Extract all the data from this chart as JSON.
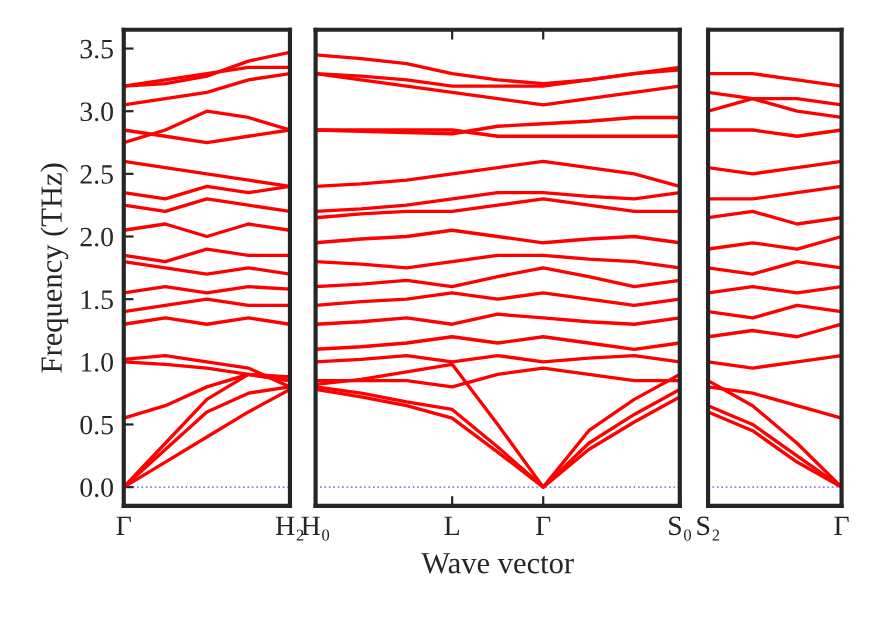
{
  "chart_data": [
    {
      "type": "line",
      "ylabel": "Frequency (THz)",
      "categories": [
        "Γ",
        null,
        null,
        null,
        "H₂"
      ],
      "ylim": [
        -0.15,
        3.65
      ],
      "yticks": [
        {
          "value": 0,
          "label": "0.0"
        },
        {
          "value": 0.5,
          "label": "0.5"
        },
        {
          "value": 1,
          "label": "1.0"
        },
        {
          "value": 1.5,
          "label": "1.5"
        },
        {
          "value": 2,
          "label": "2.0"
        },
        {
          "value": 2.5,
          "label": "2.5"
        },
        {
          "value": 3,
          "label": "3.0"
        },
        {
          "value": 3.5,
          "label": "3.5"
        }
      ],
      "grid": false,
      "line_style": "solid",
      "ref_lines": [
        {
          "axis": "y",
          "value": 0,
          "color": "#8080ff",
          "line_style": "dotted"
        }
      ],
      "series": [
        {
          "color": "#ff0000",
          "values": [
            0,
            0.2,
            0.4,
            0.6,
            0.78
          ]
        },
        {
          "color": "#ff0000",
          "values": [
            0,
            0.3,
            0.6,
            0.75,
            0.8
          ]
        },
        {
          "color": "#ff0000",
          "values": [
            0,
            0.35,
            0.7,
            0.9,
            0.85
          ]
        },
        {
          "color": "#ff0000",
          "values": [
            0.55,
            0.65,
            0.8,
            0.9,
            0.85
          ]
        },
        {
          "color": "#ff0000",
          "values": [
            1.0,
            0.98,
            0.95,
            0.9,
            0.88
          ]
        },
        {
          "color": "#ff0000",
          "values": [
            1.02,
            1.05,
            1.0,
            0.95,
            0.8
          ]
        },
        {
          "color": "#ff0000",
          "values": [
            1.3,
            1.35,
            1.3,
            1.35,
            1.3
          ]
        },
        {
          "color": "#ff0000",
          "values": [
            1.4,
            1.45,
            1.5,
            1.45,
            1.45
          ]
        },
        {
          "color": "#ff0000",
          "values": [
            1.55,
            1.6,
            1.55,
            1.6,
            1.58
          ]
        },
        {
          "color": "#ff0000",
          "values": [
            1.8,
            1.75,
            1.7,
            1.75,
            1.7
          ]
        },
        {
          "color": "#ff0000",
          "values": [
            1.85,
            1.8,
            1.9,
            1.85,
            1.85
          ]
        },
        {
          "color": "#ff0000",
          "values": [
            2.05,
            2.1,
            2.0,
            2.1,
            2.05
          ]
        },
        {
          "color": "#ff0000",
          "values": [
            2.25,
            2.2,
            2.3,
            2.25,
            2.2
          ]
        },
        {
          "color": "#ff0000",
          "values": [
            2.35,
            2.3,
            2.4,
            2.35,
            2.4
          ]
        },
        {
          "color": "#ff0000",
          "values": [
            2.6,
            2.55,
            2.5,
            2.45,
            2.4
          ]
        },
        {
          "color": "#ff0000",
          "values": [
            2.75,
            2.85,
            3.0,
            2.95,
            2.85
          ]
        },
        {
          "color": "#ff0000",
          "values": [
            2.85,
            2.8,
            2.75,
            2.8,
            2.85
          ]
        },
        {
          "color": "#ff0000",
          "values": [
            3.05,
            3.1,
            3.15,
            3.25,
            3.3
          ]
        },
        {
          "color": "#ff0000",
          "values": [
            3.2,
            3.25,
            3.3,
            3.35,
            3.35
          ]
        },
        {
          "color": "#ff0000",
          "values": [
            3.2,
            3.22,
            3.28,
            3.4,
            3.47
          ]
        }
      ]
    },
    {
      "type": "line",
      "xlabel": "Wave vector",
      "categories": [
        "H₀",
        null,
        null,
        "L",
        null,
        "Γ",
        null,
        null,
        "S₀"
      ],
      "ylim": [
        -0.15,
        3.65
      ],
      "tick_labels": "x",
      "grid": false,
      "line_style": "solid",
      "ref_lines": [
        {
          "axis": "y",
          "value": 0,
          "color": "#8080ff",
          "line_style": "dotted"
        }
      ],
      "series": [
        {
          "color": "#ff0000",
          "values": [
            0.78,
            0.72,
            0.65,
            0.55,
            0.28,
            0,
            0.3,
            0.52,
            0.72
          ]
        },
        {
          "color": "#ff0000",
          "values": [
            0.8,
            0.75,
            0.68,
            0.62,
            0.32,
            0,
            0.35,
            0.58,
            0.78
          ]
        },
        {
          "color": "#ff0000",
          "values": [
            0.82,
            0.86,
            0.92,
            0.98,
            0.5,
            0,
            0.45,
            0.7,
            0.9
          ]
        },
        {
          "color": "#ff0000",
          "values": [
            0.85,
            0.85,
            0.85,
            0.8,
            0.9,
            0.95,
            0.9,
            0.85,
            0.85
          ]
        },
        {
          "color": "#ff0000",
          "values": [
            1.0,
            1.02,
            1.05,
            1.0,
            1.05,
            1.0,
            1.03,
            1.05,
            1.0
          ]
        },
        {
          "color": "#ff0000",
          "values": [
            1.1,
            1.12,
            1.15,
            1.2,
            1.15,
            1.2,
            1.15,
            1.1,
            1.15
          ]
        },
        {
          "color": "#ff0000",
          "values": [
            1.3,
            1.32,
            1.35,
            1.3,
            1.38,
            1.35,
            1.32,
            1.3,
            1.35
          ]
        },
        {
          "color": "#ff0000",
          "values": [
            1.45,
            1.48,
            1.5,
            1.55,
            1.5,
            1.55,
            1.5,
            1.45,
            1.5
          ]
        },
        {
          "color": "#ff0000",
          "values": [
            1.6,
            1.62,
            1.65,
            1.6,
            1.68,
            1.75,
            1.68,
            1.6,
            1.65
          ]
        },
        {
          "color": "#ff0000",
          "values": [
            1.8,
            1.78,
            1.75,
            1.8,
            1.85,
            1.85,
            1.82,
            1.8,
            1.75
          ]
        },
        {
          "color": "#ff0000",
          "values": [
            1.95,
            1.98,
            2.0,
            2.05,
            2.0,
            1.95,
            1.98,
            2.0,
            1.95
          ]
        },
        {
          "color": "#ff0000",
          "values": [
            2.15,
            2.18,
            2.2,
            2.2,
            2.25,
            2.3,
            2.25,
            2.2,
            2.2
          ]
        },
        {
          "color": "#ff0000",
          "values": [
            2.2,
            2.22,
            2.25,
            2.3,
            2.35,
            2.35,
            2.32,
            2.3,
            2.35
          ]
        },
        {
          "color": "#ff0000",
          "values": [
            2.4,
            2.42,
            2.45,
            2.5,
            2.55,
            2.6,
            2.55,
            2.5,
            2.4
          ]
        },
        {
          "color": "#ff0000",
          "values": [
            2.85,
            2.85,
            2.85,
            2.85,
            2.8,
            2.8,
            2.8,
            2.8,
            2.8
          ]
        },
        {
          "color": "#ff0000",
          "values": [
            2.85,
            2.84,
            2.83,
            2.82,
            2.88,
            2.9,
            2.92,
            2.95,
            2.95
          ]
        },
        {
          "color": "#ff0000",
          "values": [
            3.3,
            3.25,
            3.2,
            3.15,
            3.1,
            3.05,
            3.1,
            3.15,
            3.2
          ]
        },
        {
          "color": "#ff0000",
          "values": [
            3.3,
            3.28,
            3.25,
            3.2,
            3.2,
            3.2,
            3.25,
            3.3,
            3.35
          ]
        },
        {
          "color": "#ff0000",
          "values": [
            3.45,
            3.42,
            3.38,
            3.3,
            3.25,
            3.22,
            3.25,
            3.3,
            3.33
          ]
        }
      ]
    },
    {
      "type": "line",
      "categories": [
        "S₂",
        null,
        null,
        "Γ"
      ],
      "ylim": [
        -0.15,
        3.65
      ],
      "tick_labels": "x",
      "grid": false,
      "line_style": "solid",
      "ref_lines": [
        {
          "axis": "y",
          "value": 0,
          "color": "#8080ff",
          "line_style": "dotted"
        }
      ],
      "series": [
        {
          "color": "#ff0000",
          "values": [
            0.6,
            0.45,
            0.2,
            0
          ]
        },
        {
          "color": "#ff0000",
          "values": [
            0.65,
            0.5,
            0.25,
            0
          ]
        },
        {
          "color": "#ff0000",
          "values": [
            0.85,
            0.65,
            0.35,
            0
          ]
        },
        {
          "color": "#ff0000",
          "values": [
            0.8,
            0.75,
            0.65,
            0.55
          ]
        },
        {
          "color": "#ff0000",
          "values": [
            1.0,
            0.95,
            1.0,
            1.05
          ]
        },
        {
          "color": "#ff0000",
          "values": [
            1.2,
            1.25,
            1.2,
            1.3
          ]
        },
        {
          "color": "#ff0000",
          "values": [
            1.4,
            1.35,
            1.45,
            1.4
          ]
        },
        {
          "color": "#ff0000",
          "values": [
            1.55,
            1.6,
            1.55,
            1.6
          ]
        },
        {
          "color": "#ff0000",
          "values": [
            1.75,
            1.7,
            1.8,
            1.75
          ]
        },
        {
          "color": "#ff0000",
          "values": [
            1.9,
            1.95,
            1.9,
            2.0
          ]
        },
        {
          "color": "#ff0000",
          "values": [
            2.15,
            2.2,
            2.1,
            2.15
          ]
        },
        {
          "color": "#ff0000",
          "values": [
            2.3,
            2.3,
            2.35,
            2.4
          ]
        },
        {
          "color": "#ff0000",
          "values": [
            2.55,
            2.5,
            2.55,
            2.6
          ]
        },
        {
          "color": "#ff0000",
          "values": [
            2.85,
            2.85,
            2.8,
            2.85
          ]
        },
        {
          "color": "#ff0000",
          "values": [
            3.0,
            3.1,
            3.0,
            2.95
          ]
        },
        {
          "color": "#ff0000",
          "values": [
            3.15,
            3.1,
            3.1,
            3.05
          ]
        },
        {
          "color": "#ff0000",
          "values": [
            3.3,
            3.3,
            3.25,
            3.2
          ]
        }
      ]
    }
  ]
}
